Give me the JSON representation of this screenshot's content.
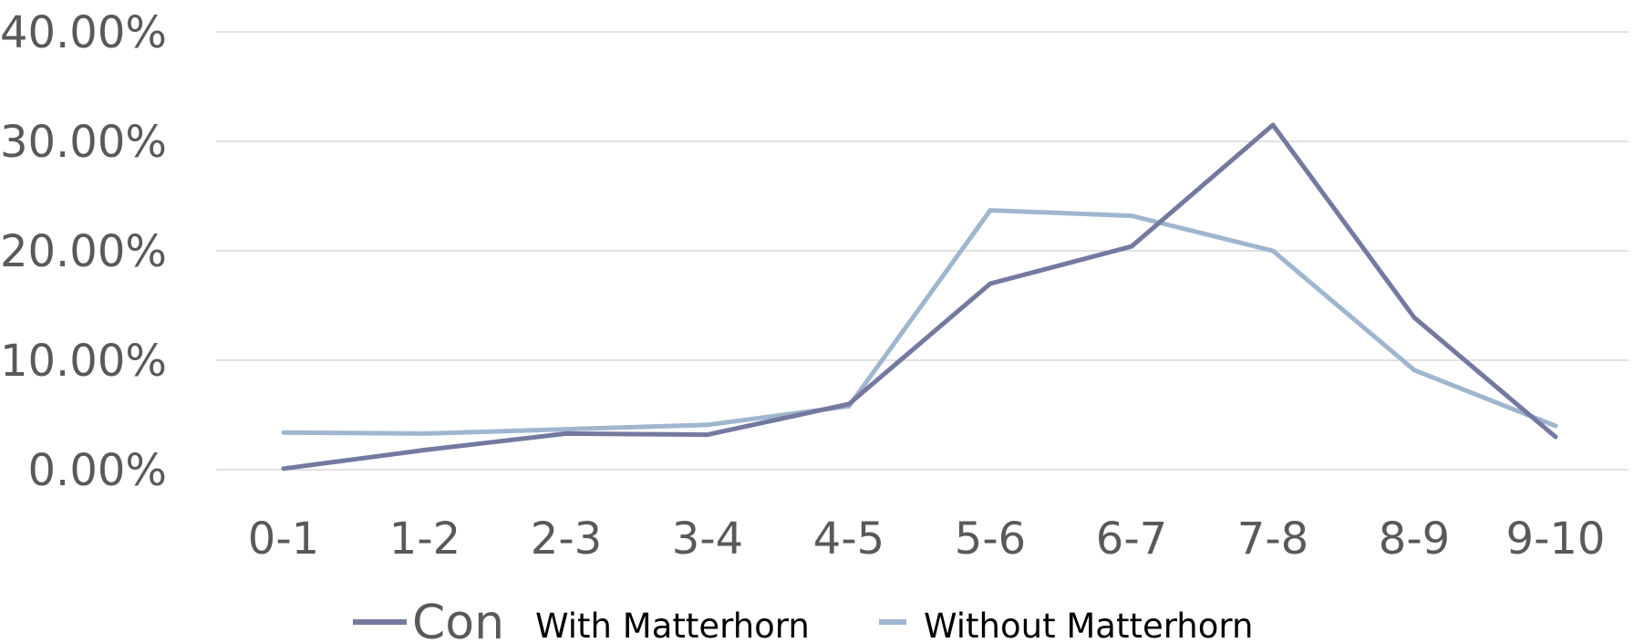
{
  "chart_data": {
    "type": "line",
    "categories": [
      "0-1",
      "1-2",
      "2-3",
      "3-4",
      "4-5",
      "5-6",
      "6-7",
      "7-8",
      "8-9",
      "9-10"
    ],
    "yticks": [
      "0.00%",
      "10.00%",
      "20.00%",
      "30.00%",
      "40.00%"
    ],
    "ylim": [
      0,
      40
    ],
    "grid": true,
    "legend_position": "bottom",
    "legend_fragment": "Con",
    "series": [
      {
        "name": "With Matterhorn",
        "color": "#7479a0",
        "values": [
          0.1,
          1.8,
          3.3,
          3.2,
          6.0,
          17.0,
          20.4,
          31.5,
          13.9,
          3.0
        ]
      },
      {
        "name": "Without Matterhorn",
        "color": "#9fb6cf",
        "values": [
          3.4,
          3.3,
          3.7,
          4.1,
          5.8,
          23.7,
          23.2,
          20.0,
          9.1,
          4.0
        ]
      }
    ]
  }
}
